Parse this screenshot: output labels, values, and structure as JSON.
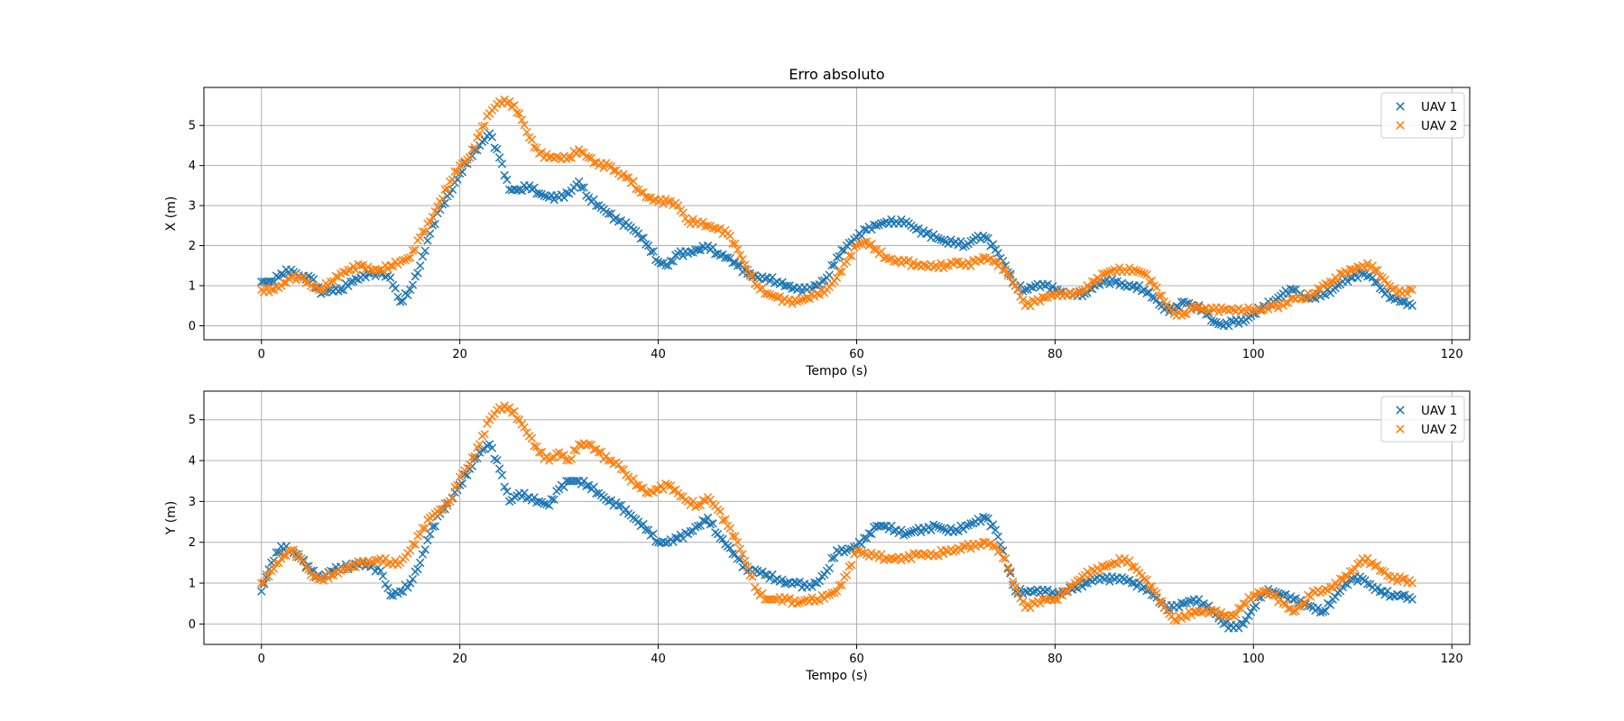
{
  "chart_data": [
    {
      "type": "scatter",
      "title": "Erro absoluto",
      "xlabel": "Tempo (s)",
      "ylabel": "X (m)",
      "xlim": [
        -5.8,
        121.8
      ],
      "ylim": [
        -0.35,
        5.95
      ],
      "xticks": [
        0,
        20,
        40,
        60,
        80,
        100,
        120
      ],
      "yticks": [
        0,
        1,
        2,
        3,
        4,
        5
      ],
      "grid": true,
      "legend": "top-right",
      "marker": "x",
      "series": [
        {
          "name": "UAV 1",
          "color": "#1f77b4",
          "x": [
            0,
            1,
            2,
            3,
            4,
            5,
            6,
            7,
            8,
            9,
            10,
            11,
            12,
            13,
            14,
            15,
            16,
            17,
            18,
            19,
            20,
            21,
            22,
            23,
            24,
            25,
            26,
            27,
            28,
            29,
            30,
            31,
            32,
            33,
            34,
            35,
            36,
            37,
            38,
            39,
            40,
            41,
            42,
            43,
            44,
            45,
            46,
            47,
            48,
            49,
            50,
            51,
            52,
            53,
            54,
            55,
            56,
            57,
            58,
            59,
            60,
            61,
            62,
            63,
            64,
            65,
            66,
            67,
            68,
            69,
            70,
            71,
            72,
            73,
            74,
            75,
            76,
            77,
            78,
            79,
            80,
            81,
            82,
            83,
            84,
            85,
            86,
            87,
            88,
            89,
            90,
            91,
            92,
            93,
            94,
            95,
            96,
            97,
            98,
            99,
            100,
            101,
            102,
            103,
            104,
            105,
            106,
            107,
            108,
            109,
            110,
            111,
            112,
            113,
            114,
            115,
            116
          ],
          "y": [
            1.1,
            1.1,
            1.3,
            1.4,
            1.2,
            1.2,
            0.8,
            0.9,
            0.9,
            1.1,
            1.2,
            1.3,
            1.3,
            1.2,
            0.6,
            0.9,
            1.5,
            2.3,
            2.9,
            3.3,
            3.8,
            4.2,
            4.5,
            4.8,
            4.2,
            3.4,
            3.4,
            3.5,
            3.3,
            3.2,
            3.2,
            3.3,
            3.6,
            3.2,
            3.0,
            2.8,
            2.6,
            2.5,
            2.3,
            2.0,
            1.6,
            1.5,
            1.8,
            1.8,
            1.9,
            2.0,
            1.8,
            1.7,
            1.5,
            1.3,
            1.2,
            1.2,
            1.1,
            1.0,
            0.9,
            0.9,
            1.0,
            1.2,
            1.7,
            2.0,
            2.2,
            2.4,
            2.5,
            2.6,
            2.6,
            2.6,
            2.4,
            2.3,
            2.2,
            2.1,
            2.1,
            2.0,
            2.2,
            2.2,
            1.9,
            1.5,
            1.0,
            0.9,
            1.0,
            1.0,
            0.9,
            0.8,
            0.8,
            0.8,
            1.0,
            1.1,
            1.1,
            1.0,
            1.0,
            0.9,
            0.7,
            0.4,
            0.4,
            0.6,
            0.5,
            0.4,
            0.1,
            0.0,
            0.1,
            0.1,
            0.3,
            0.5,
            0.6,
            0.8,
            0.9,
            0.7,
            0.7,
            0.8,
            0.9,
            1.1,
            1.2,
            1.3,
            1.2,
            0.9,
            0.7,
            0.6,
            0.5
          ]
        },
        {
          "name": "UAV 2",
          "color": "#ff7f0e",
          "x": [
            0,
            1,
            2,
            3,
            4,
            5,
            6,
            7,
            8,
            9,
            10,
            11,
            12,
            13,
            14,
            15,
            16,
            17,
            18,
            19,
            20,
            21,
            22,
            23,
            24,
            25,
            26,
            27,
            28,
            29,
            30,
            31,
            32,
            33,
            34,
            35,
            36,
            37,
            38,
            39,
            40,
            41,
            42,
            43,
            44,
            45,
            46,
            47,
            48,
            49,
            50,
            51,
            52,
            53,
            54,
            55,
            56,
            57,
            58,
            59,
            60,
            61,
            62,
            63,
            64,
            65,
            66,
            67,
            68,
            69,
            70,
            71,
            72,
            73,
            74,
            75,
            76,
            77,
            78,
            79,
            80,
            81,
            82,
            83,
            84,
            85,
            86,
            87,
            88,
            89,
            90,
            91,
            92,
            93,
            94,
            95,
            96,
            97,
            98,
            99,
            100,
            101,
            102,
            103,
            104,
            105,
            106,
            107,
            108,
            109,
            110,
            111,
            112,
            113,
            114,
            115,
            116
          ],
          "y": [
            0.9,
            0.9,
            1.0,
            1.2,
            1.2,
            1.0,
            0.9,
            1.1,
            1.3,
            1.4,
            1.5,
            1.4,
            1.4,
            1.5,
            1.6,
            1.7,
            2.2,
            2.6,
            3.1,
            3.6,
            4.0,
            4.2,
            4.8,
            5.3,
            5.6,
            5.6,
            5.3,
            4.7,
            4.3,
            4.2,
            4.2,
            4.2,
            4.4,
            4.2,
            4.0,
            4.0,
            3.8,
            3.7,
            3.4,
            3.2,
            3.1,
            3.1,
            3.0,
            2.6,
            2.6,
            2.5,
            2.4,
            2.3,
            1.9,
            1.4,
            1.0,
            0.8,
            0.7,
            0.6,
            0.6,
            0.7,
            0.8,
            0.9,
            1.2,
            1.6,
            2.0,
            2.1,
            1.9,
            1.7,
            1.6,
            1.6,
            1.5,
            1.5,
            1.5,
            1.5,
            1.6,
            1.5,
            1.6,
            1.7,
            1.6,
            1.4,
            1.0,
            0.5,
            0.6,
            0.7,
            0.8,
            0.8,
            0.8,
            0.9,
            1.1,
            1.3,
            1.4,
            1.4,
            1.4,
            1.3,
            1.0,
            0.6,
            0.3,
            0.3,
            0.5,
            0.4,
            0.4,
            0.4,
            0.4,
            0.4,
            0.4,
            0.4,
            0.5,
            0.5,
            0.7,
            0.7,
            0.8,
            1.0,
            1.1,
            1.3,
            1.4,
            1.5,
            1.5,
            1.2,
            0.9,
            0.8,
            0.9
          ]
        }
      ]
    },
    {
      "type": "scatter",
      "title": "",
      "xlabel": "Tempo (s)",
      "ylabel": "Y (m)",
      "xlim": [
        -5.8,
        121.8
      ],
      "ylim": [
        -0.5,
        5.7
      ],
      "xticks": [
        0,
        20,
        40,
        60,
        80,
        100,
        120
      ],
      "yticks": [
        0,
        1,
        2,
        3,
        4,
        5
      ],
      "grid": true,
      "legend": "top-right",
      "marker": "x",
      "series": [
        {
          "name": "UAV 1",
          "color": "#1f77b4",
          "x": [
            0,
            1,
            2,
            3,
            4,
            5,
            6,
            7,
            8,
            9,
            10,
            11,
            12,
            13,
            14,
            15,
            16,
            17,
            18,
            19,
            20,
            21,
            22,
            23,
            24,
            25,
            26,
            27,
            28,
            29,
            30,
            31,
            32,
            33,
            34,
            35,
            36,
            37,
            38,
            39,
            40,
            41,
            42,
            43,
            44,
            45,
            46,
            47,
            48,
            49,
            50,
            51,
            52,
            53,
            54,
            55,
            56,
            57,
            58,
            59,
            60,
            61,
            62,
            63,
            64,
            65,
            66,
            67,
            68,
            69,
            70,
            71,
            72,
            73,
            74,
            75,
            76,
            77,
            78,
            79,
            80,
            81,
            82,
            83,
            84,
            85,
            86,
            87,
            88,
            89,
            90,
            91,
            92,
            93,
            94,
            95,
            96,
            97,
            98,
            99,
            100,
            101,
            102,
            103,
            104,
            105,
            106,
            107,
            108,
            109,
            110,
            111,
            112,
            113,
            114,
            115,
            116
          ],
          "y": [
            0.8,
            1.5,
            1.9,
            1.8,
            1.6,
            1.3,
            1.1,
            1.3,
            1.4,
            1.4,
            1.5,
            1.4,
            1.3,
            0.7,
            0.8,
            1.0,
            1.5,
            2.2,
            2.7,
            3.0,
            3.4,
            3.8,
            4.2,
            4.4,
            3.8,
            3.0,
            3.2,
            3.1,
            3.0,
            2.9,
            3.3,
            3.5,
            3.5,
            3.4,
            3.2,
            3.0,
            2.9,
            2.7,
            2.5,
            2.3,
            2.0,
            2.0,
            2.1,
            2.2,
            2.4,
            2.6,
            2.2,
            1.9,
            1.6,
            1.3,
            1.3,
            1.2,
            1.1,
            1.0,
            1.0,
            0.9,
            1.0,
            1.3,
            1.8,
            1.8,
            1.9,
            2.1,
            2.4,
            2.4,
            2.3,
            2.2,
            2.3,
            2.3,
            2.4,
            2.3,
            2.3,
            2.4,
            2.5,
            2.6,
            2.3,
            1.6,
            0.8,
            0.8,
            0.8,
            0.8,
            0.7,
            0.8,
            0.9,
            1.0,
            1.1,
            1.1,
            1.1,
            1.1,
            1.0,
            0.9,
            0.7,
            0.4,
            0.4,
            0.5,
            0.6,
            0.5,
            0.3,
            0.0,
            -0.1,
            0.0,
            0.4,
            0.8,
            0.8,
            0.7,
            0.6,
            0.5,
            0.4,
            0.3,
            0.6,
            0.9,
            1.1,
            1.1,
            0.9,
            0.8,
            0.7,
            0.7,
            0.6
          ]
        },
        {
          "name": "UAV 2",
          "color": "#ff7f0e",
          "x": [
            0,
            1,
            2,
            3,
            4,
            5,
            6,
            7,
            8,
            9,
            10,
            11,
            12,
            13,
            14,
            15,
            16,
            17,
            18,
            19,
            20,
            21,
            22,
            23,
            24,
            25,
            26,
            27,
            28,
            29,
            30,
            31,
            32,
            33,
            34,
            35,
            36,
            37,
            38,
            39,
            40,
            41,
            42,
            43,
            44,
            45,
            46,
            47,
            48,
            49,
            50,
            51,
            52,
            53,
            54,
            55,
            56,
            57,
            58,
            59,
            60,
            61,
            62,
            63,
            64,
            65,
            66,
            67,
            68,
            69,
            70,
            71,
            72,
            73,
            74,
            75,
            76,
            77,
            78,
            79,
            80,
            81,
            82,
            83,
            84,
            85,
            86,
            87,
            88,
            89,
            90,
            91,
            92,
            93,
            94,
            95,
            96,
            97,
            98,
            99,
            100,
            101,
            102,
            103,
            104,
            105,
            106,
            107,
            108,
            109,
            110,
            111,
            112,
            113,
            114,
            115,
            116
          ],
          "y": [
            1.0,
            1.3,
            1.6,
            1.8,
            1.6,
            1.2,
            1.1,
            1.2,
            1.3,
            1.4,
            1.5,
            1.5,
            1.6,
            1.5,
            1.5,
            1.8,
            2.2,
            2.6,
            2.8,
            3.0,
            3.6,
            3.9,
            4.4,
            5.0,
            5.3,
            5.3,
            5.0,
            4.6,
            4.2,
            4.0,
            4.2,
            4.0,
            4.4,
            4.4,
            4.2,
            4.0,
            3.9,
            3.6,
            3.4,
            3.2,
            3.3,
            3.4,
            3.2,
            3.0,
            2.9,
            3.1,
            2.8,
            2.4,
            2.0,
            1.4,
            0.8,
            0.6,
            0.6,
            0.6,
            0.5,
            0.6,
            0.6,
            0.7,
            0.8,
            1.2,
            1.8,
            1.7,
            1.7,
            1.6,
            1.6,
            1.6,
            1.7,
            1.7,
            1.7,
            1.8,
            1.8,
            1.9,
            1.9,
            2.0,
            1.9,
            1.6,
            0.9,
            0.4,
            0.5,
            0.6,
            0.6,
            0.8,
            1.0,
            1.2,
            1.3,
            1.4,
            1.5,
            1.6,
            1.4,
            1.1,
            0.8,
            0.4,
            0.1,
            0.2,
            0.3,
            0.3,
            0.3,
            0.2,
            0.2,
            0.5,
            0.7,
            0.8,
            0.7,
            0.5,
            0.3,
            0.5,
            0.8,
            0.8,
            0.9,
            1.1,
            1.3,
            1.6,
            1.5,
            1.3,
            1.1,
            1.1,
            1.0
          ]
        }
      ]
    }
  ]
}
